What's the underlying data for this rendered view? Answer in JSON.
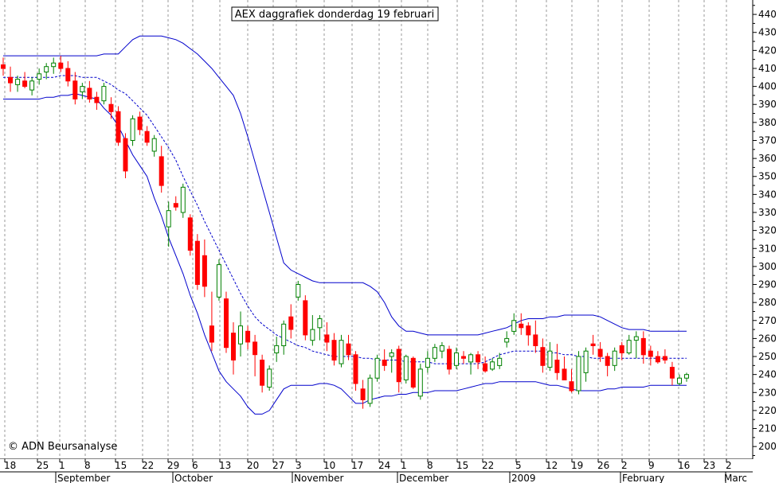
{
  "chart_data": {
    "type": "candlestick",
    "title": "AEX daggrafiek donderdag 19 februari",
    "copyright": "© ADN Beursanalyse",
    "ylim": [
      193,
      448
    ],
    "y_ticks": [
      200,
      210,
      220,
      230,
      240,
      250,
      260,
      270,
      280,
      290,
      300,
      310,
      320,
      330,
      340,
      350,
      360,
      370,
      380,
      390,
      400,
      410,
      420,
      430,
      440
    ],
    "x_day_ticks": [
      "18",
      "25",
      "1",
      "8",
      "15",
      "22",
      "29",
      "6",
      "13",
      "20",
      "27",
      "3",
      "10",
      "17",
      "24",
      "1",
      "8",
      "15",
      "22",
      "5",
      "12",
      "19",
      "26",
      "2",
      "9",
      "16",
      "23",
      "2"
    ],
    "x_month_labels": [
      "September",
      "October",
      "November",
      "December",
      "2009",
      "February",
      "Marc"
    ],
    "grid": true,
    "colors": {
      "up": "#008000",
      "down": "#ff0000",
      "bands": "#0000cc",
      "grid": "#999999"
    },
    "candles": [
      [
        412,
        416,
        406,
        410
      ],
      [
        405,
        411,
        397,
        402
      ],
      [
        401,
        406,
        397,
        404
      ],
      [
        403,
        408,
        399,
        400
      ],
      [
        398,
        405,
        395,
        403
      ],
      [
        404,
        410,
        401,
        407
      ],
      [
        408,
        413,
        404,
        411
      ],
      [
        411,
        416,
        407,
        413
      ],
      [
        413,
        417,
        408,
        410
      ],
      [
        410,
        414,
        400,
        403
      ],
      [
        403,
        408,
        390,
        393
      ],
      [
        397,
        402,
        393,
        400
      ],
      [
        399,
        403,
        391,
        393
      ],
      [
        394,
        397,
        387,
        391
      ],
      [
        392,
        402,
        390,
        400
      ],
      [
        390,
        394,
        382,
        386
      ],
      [
        386,
        389,
        367,
        369
      ],
      [
        371,
        374,
        349,
        353
      ],
      [
        370,
        384,
        367,
        382
      ],
      [
        383,
        386,
        373,
        376
      ],
      [
        375,
        378,
        367,
        369
      ],
      [
        364,
        373,
        361,
        371
      ],
      [
        361,
        367,
        341,
        345
      ],
      [
        322,
        336,
        311,
        331
      ],
      [
        335,
        339,
        331,
        333
      ],
      [
        330,
        346,
        327,
        344
      ],
      [
        327,
        329,
        306,
        309
      ],
      [
        314,
        318,
        287,
        290
      ],
      [
        306,
        315,
        283,
        289
      ],
      [
        267,
        286,
        253,
        258
      ],
      [
        283,
        304,
        281,
        301
      ],
      [
        282,
        286,
        252,
        255
      ],
      [
        263,
        269,
        240,
        248
      ],
      [
        257,
        275,
        250,
        267
      ],
      [
        264,
        267,
        254,
        258
      ],
      [
        258,
        262,
        239,
        251
      ],
      [
        248,
        251,
        230,
        234
      ],
      [
        233,
        245,
        231,
        243
      ],
      [
        252,
        261,
        247,
        256
      ],
      [
        256,
        270,
        251,
        268
      ],
      [
        272,
        279,
        260,
        265
      ],
      [
        283,
        292,
        281,
        290
      ],
      [
        281,
        284,
        259,
        262
      ],
      [
        259,
        273,
        256,
        265
      ],
      [
        266,
        273,
        259,
        271
      ],
      [
        262,
        269,
        253,
        258
      ],
      [
        259,
        263,
        245,
        248
      ],
      [
        246,
        262,
        244,
        259
      ],
      [
        257,
        262,
        248,
        251
      ],
      [
        251,
        253,
        231,
        235
      ],
      [
        232,
        237,
        221,
        226
      ],
      [
        224,
        240,
        222,
        238
      ],
      [
        238,
        251,
        236,
        249
      ],
      [
        248,
        254,
        242,
        245
      ],
      [
        250,
        254,
        241,
        252
      ],
      [
        254,
        256,
        230,
        236
      ],
      [
        237,
        251,
        235,
        250
      ],
      [
        249,
        250,
        232,
        233
      ],
      [
        228,
        246,
        226,
        243
      ],
      [
        244,
        253,
        241,
        249
      ],
      [
        249,
        257,
        247,
        255
      ],
      [
        253,
        258,
        249,
        256
      ],
      [
        254,
        256,
        240,
        243
      ],
      [
        245,
        255,
        243,
        252
      ],
      [
        250,
        253,
        246,
        249
      ],
      [
        247,
        252,
        240,
        251
      ],
      [
        251,
        253,
        243,
        247
      ],
      [
        246,
        250,
        241,
        242
      ],
      [
        243,
        249,
        242,
        247
      ],
      [
        245,
        252,
        243,
        249
      ],
      [
        258,
        264,
        255,
        260
      ],
      [
        264,
        274,
        262,
        270
      ],
      [
        268,
        274,
        262,
        266
      ],
      [
        267,
        269,
        256,
        262
      ],
      [
        262,
        270,
        252,
        256
      ],
      [
        255,
        260,
        241,
        245
      ],
      [
        244,
        258,
        242,
        253
      ],
      [
        248,
        257,
        237,
        241
      ],
      [
        243,
        250,
        239,
        237
      ],
      [
        236,
        243,
        230,
        231
      ],
      [
        231,
        253,
        229,
        250
      ],
      [
        241,
        255,
        236,
        253
      ],
      [
        257,
        262,
        251,
        256
      ],
      [
        254,
        258,
        247,
        250
      ],
      [
        250,
        252,
        239,
        245
      ],
      [
        245,
        255,
        242,
        253
      ],
      [
        256,
        258,
        248,
        252
      ],
      [
        252,
        262,
        251,
        259
      ],
      [
        259,
        264,
        249,
        261
      ],
      [
        260,
        264,
        246,
        251
      ],
      [
        253,
        256,
        245,
        250
      ],
      [
        250,
        253,
        246,
        247
      ],
      [
        250,
        254,
        246,
        248
      ],
      [
        244,
        247,
        234,
        238
      ],
      [
        235,
        240,
        234,
        238
      ],
      [
        238,
        241,
        236,
        240
      ]
    ],
    "series": [
      {
        "name": "",
        "values": [
          417,
          417,
          417,
          417,
          417,
          417,
          417,
          417,
          417,
          417,
          417,
          417,
          417,
          417,
          418,
          418,
          418,
          422,
          426,
          428,
          428,
          428,
          428,
          427,
          426,
          424,
          421,
          418,
          414,
          410,
          405,
          400,
          395,
          385,
          372,
          358,
          344,
          330,
          316,
          302,
          298,
          296,
          294,
          292,
          291,
          291,
          291,
          291,
          291,
          291,
          291,
          289,
          286,
          280,
          272,
          267,
          264,
          264,
          263,
          262,
          262,
          262,
          262,
          262,
          262,
          262,
          262,
          263,
          264,
          265,
          266,
          268,
          270,
          271,
          271,
          271,
          272,
          272,
          273,
          273,
          273,
          273,
          273,
          272,
          270,
          268,
          266,
          265,
          265,
          265,
          264,
          264,
          264,
          264,
          264,
          264
        ]
      },
      {
        "name": "",
        "values": [
          405,
          405,
          405,
          405,
          405,
          405,
          405,
          405,
          406,
          406,
          406,
          405,
          405,
          405,
          403,
          401,
          398,
          396,
          392,
          388,
          384,
          378,
          372,
          366,
          359,
          350,
          342,
          334,
          325,
          317,
          309,
          301,
          293,
          285,
          278,
          272,
          268,
          265,
          262,
          260,
          258,
          256,
          255,
          253,
          252,
          251,
          250,
          250,
          250,
          250,
          249,
          249,
          248,
          248,
          248,
          248,
          247,
          247,
          247,
          247,
          246,
          246,
          246,
          246,
          246,
          246,
          246,
          247,
          249,
          251,
          252,
          253,
          253,
          253,
          253,
          253,
          252,
          252,
          251,
          251,
          250,
          250,
          249,
          249,
          249,
          249,
          249,
          249,
          249,
          249,
          249,
          249,
          249,
          249,
          249,
          249
        ]
      },
      {
        "name": "",
        "values": [
          393,
          393,
          393,
          393,
          393,
          393,
          394,
          394,
          395,
          395,
          396,
          395,
          394,
          393,
          388,
          384,
          378,
          370,
          362,
          356,
          350,
          338,
          328,
          316,
          306,
          296,
          284,
          274,
          262,
          252,
          242,
          236,
          232,
          228,
          222,
          218,
          218,
          220,
          226,
          232,
          234,
          234,
          234,
          234,
          235,
          235,
          234,
          232,
          228,
          224,
          224,
          226,
          227,
          228,
          228,
          229,
          229,
          230,
          230,
          230,
          231,
          231,
          231,
          231,
          232,
          233,
          234,
          235,
          235,
          236,
          236,
          236,
          236,
          236,
          236,
          235,
          234,
          234,
          233,
          232,
          231,
          231,
          231,
          231,
          232,
          232,
          233,
          233,
          233,
          233,
          234,
          234,
          234,
          234,
          234,
          234
        ]
      }
    ]
  }
}
